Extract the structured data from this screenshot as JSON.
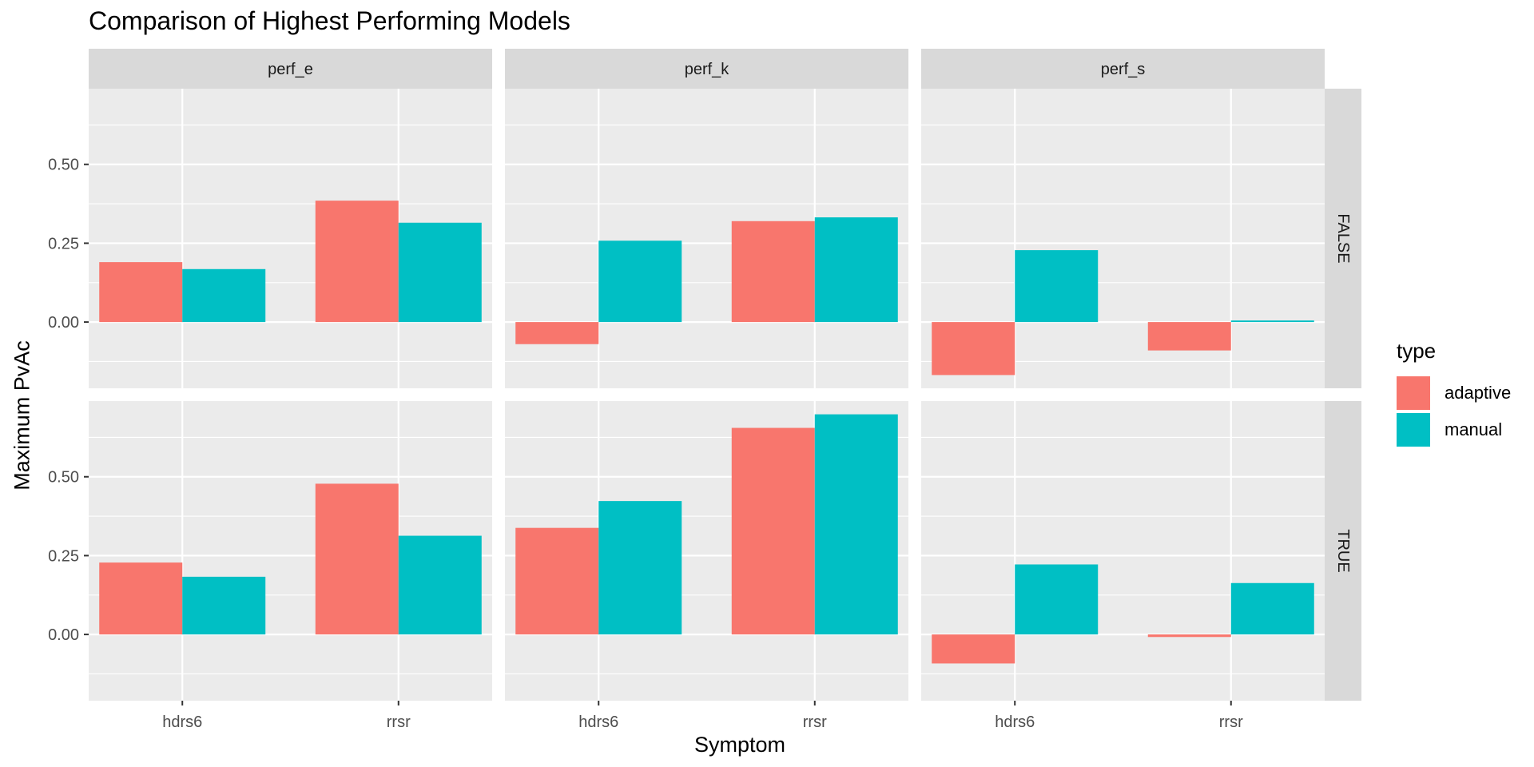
{
  "chart_data": {
    "type": "bar",
    "title": "Comparison of Highest Performing Models",
    "xlabel": "Symptom",
    "ylabel": "Maximum PvAc",
    "categories": [
      "hdrs6",
      "rrsr"
    ],
    "column_facets": [
      "perf_e",
      "perf_k",
      "perf_s"
    ],
    "row_facets": [
      "FALSE",
      "TRUE"
    ],
    "y_ticks": [
      0,
      0.25,
      0.5
    ],
    "y_tick_labels": [
      "0.00",
      "0.25",
      "0.50"
    ],
    "ylim": [
      -0.21,
      0.74
    ],
    "grid": true,
    "legend": {
      "title": "type",
      "position": "right",
      "entries": [
        {
          "name": "adaptive",
          "color": "#F8766D"
        },
        {
          "name": "manual",
          "color": "#00BFC4"
        }
      ]
    },
    "panels": [
      {
        "col": "perf_e",
        "row": "FALSE",
        "series": [
          {
            "name": "adaptive",
            "values": [
              0.19,
              0.385
            ]
          },
          {
            "name": "manual",
            "values": [
              0.168,
              0.315
            ]
          }
        ]
      },
      {
        "col": "perf_k",
        "row": "FALSE",
        "series": [
          {
            "name": "adaptive",
            "values": [
              -0.07,
              0.32
            ]
          },
          {
            "name": "manual",
            "values": [
              0.258,
              0.332
            ]
          }
        ]
      },
      {
        "col": "perf_s",
        "row": "FALSE",
        "series": [
          {
            "name": "adaptive",
            "values": [
              -0.168,
              -0.09
            ]
          },
          {
            "name": "manual",
            "values": [
              0.228,
              0.005
            ]
          }
        ]
      },
      {
        "col": "perf_e",
        "row": "TRUE",
        "series": [
          {
            "name": "adaptive",
            "values": [
              0.228,
              0.478
            ]
          },
          {
            "name": "manual",
            "values": [
              0.183,
              0.313
            ]
          }
        ]
      },
      {
        "col": "perf_k",
        "row": "TRUE",
        "series": [
          {
            "name": "adaptive",
            "values": [
              0.338,
              0.655
            ]
          },
          {
            "name": "manual",
            "values": [
              0.423,
              0.698
            ]
          }
        ]
      },
      {
        "col": "perf_s",
        "row": "TRUE",
        "series": [
          {
            "name": "adaptive",
            "values": [
              -0.092,
              -0.008
            ]
          },
          {
            "name": "manual",
            "values": [
              0.222,
              0.163
            ]
          }
        ]
      }
    ]
  }
}
